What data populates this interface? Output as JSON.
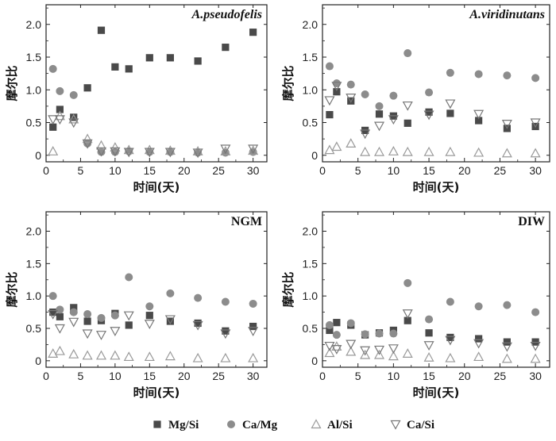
{
  "colors": {
    "mg_si": "#4a4a4a",
    "ca_mg": "#8c8c8c",
    "al_si": "#9a9a9a",
    "ca_si": "#777777",
    "axis": "#222222"
  },
  "legend": {
    "items": [
      {
        "key": "mg_si",
        "label": "Mg/Si",
        "marker": "square-filled"
      },
      {
        "key": "ca_mg",
        "label": "Ca/Mg",
        "marker": "circle-filled"
      },
      {
        "key": "al_si",
        "label": "Al/Si",
        "marker": "triangle-up-open"
      },
      {
        "key": "ca_si",
        "label": "Ca/Si",
        "marker": "triangle-down-open"
      }
    ]
  },
  "chart_data": [
    {
      "type": "scatter",
      "title": "A.pseudofelis",
      "title_italic": true,
      "xlabel": "时间(天)",
      "ylabel": "摩尔比",
      "xlim": [
        0,
        32
      ],
      "ylim": [
        -0.1,
        2.3
      ],
      "xticks": [
        0,
        5,
        10,
        15,
        20,
        25,
        30
      ],
      "yticks": [
        0,
        0.5,
        1.0,
        1.5,
        2.0
      ],
      "ytick_labels": [
        "0",
        "0.5",
        "1.0",
        "1.5",
        "2.0"
      ],
      "series": [
        {
          "name": "Mg/Si",
          "x": [
            1,
            2,
            4,
            6,
            8,
            10,
            12,
            15,
            18,
            22,
            26,
            30
          ],
          "y": [
            0.43,
            0.7,
            0.58,
            1.03,
            1.91,
            1.35,
            1.32,
            1.49,
            1.49,
            1.44,
            1.65,
            1.88
          ]
        },
        {
          "name": "Ca/Mg",
          "x": [
            1,
            2,
            4,
            6,
            8,
            10,
            12,
            15,
            18,
            22,
            26,
            30
          ],
          "y": [
            1.32,
            0.98,
            0.92,
            0.18,
            0.05,
            0.05,
            0.06,
            0.05,
            0.05,
            0.04,
            0.04,
            0.05
          ]
        },
        {
          "name": "Al/Si",
          "x": [
            1,
            2,
            4,
            6,
            8,
            10,
            12,
            15,
            18,
            22,
            26,
            30
          ],
          "y": [
            0.06,
            0.6,
            0.55,
            0.25,
            0.15,
            0.12,
            0.08,
            0.08,
            0.07,
            0.06,
            0.06,
            0.07
          ]
        },
        {
          "name": "Ca/Si",
          "x": [
            1,
            2,
            4,
            6,
            8,
            10,
            12,
            15,
            18,
            22,
            26,
            30
          ],
          "y": [
            0.55,
            0.55,
            0.5,
            0.18,
            0.06,
            0.06,
            0.05,
            0.05,
            0.05,
            0.04,
            0.1,
            0.1
          ]
        }
      ]
    },
    {
      "type": "scatter",
      "title": "A.viridinutans",
      "title_italic": true,
      "xlabel": "时间(天)",
      "ylabel": "摩尔比",
      "xlim": [
        0,
        32
      ],
      "ylim": [
        -0.1,
        2.3
      ],
      "xticks": [
        0,
        5,
        10,
        15,
        20,
        25,
        30
      ],
      "yticks": [
        0,
        0.5,
        1.0,
        1.5,
        2.0
      ],
      "ytick_labels": [
        "0",
        "0.5",
        "1.0",
        "1.5",
        "2.0"
      ],
      "series": [
        {
          "name": "Mg/Si",
          "x": [
            1,
            2,
            4,
            6,
            8,
            10,
            12,
            15,
            18,
            22,
            26,
            30
          ],
          "y": [
            0.62,
            0.97,
            0.83,
            0.38,
            0.63,
            0.6,
            0.49,
            0.66,
            0.64,
            0.53,
            0.41,
            0.44
          ]
        },
        {
          "name": "Ca/Mg",
          "x": [
            1,
            2,
            4,
            6,
            8,
            10,
            12,
            15,
            18,
            22,
            26,
            30
          ],
          "y": [
            1.36,
            1.1,
            1.08,
            0.93,
            0.75,
            0.91,
            1.56,
            0.96,
            1.26,
            1.24,
            1.22,
            1.18
          ]
        },
        {
          "name": "Al/Si",
          "x": [
            1,
            2,
            4,
            6,
            8,
            10,
            12,
            15,
            18,
            22,
            26,
            30
          ],
          "y": [
            0.08,
            0.13,
            0.18,
            0.05,
            0.05,
            0.06,
            0.05,
            0.05,
            0.05,
            0.04,
            0.03,
            0.03
          ]
        },
        {
          "name": "Ca/Si",
          "x": [
            1,
            2,
            4,
            6,
            8,
            10,
            12,
            15,
            18,
            22,
            26,
            30
          ],
          "y": [
            0.84,
            1.06,
            0.88,
            0.33,
            0.45,
            0.55,
            0.76,
            0.62,
            0.79,
            0.63,
            0.48,
            0.5
          ]
        }
      ]
    },
    {
      "type": "scatter",
      "title": "NGM",
      "title_italic": false,
      "xlabel": "时间(天)",
      "ylabel": "摩尔比",
      "xlim": [
        0,
        32
      ],
      "ylim": [
        -0.1,
        2.3
      ],
      "xticks": [
        0,
        5,
        10,
        15,
        20,
        25,
        30
      ],
      "yticks": [
        0,
        0.5,
        1.0,
        1.5,
        2.0
      ],
      "ytick_labels": [
        "0",
        "0.5",
        "1.0",
        "1.5",
        "2.0"
      ],
      "series": [
        {
          "name": "Mg/Si",
          "x": [
            1,
            2,
            4,
            6,
            8,
            10,
            12,
            15,
            18,
            22,
            26,
            30
          ],
          "y": [
            0.75,
            0.68,
            0.82,
            0.61,
            0.62,
            0.73,
            0.55,
            0.7,
            0.61,
            0.58,
            0.46,
            0.53
          ]
        },
        {
          "name": "Ca/Mg",
          "x": [
            1,
            2,
            4,
            6,
            8,
            10,
            12,
            15,
            18,
            22,
            26,
            30
          ],
          "y": [
            1.0,
            0.79,
            0.75,
            0.72,
            0.66,
            0.7,
            1.29,
            0.84,
            1.04,
            0.97,
            0.91,
            0.88
          ]
        },
        {
          "name": "Al/Si",
          "x": [
            1,
            2,
            4,
            6,
            8,
            10,
            12,
            15,
            18,
            22,
            26,
            30
          ],
          "y": [
            0.11,
            0.15,
            0.1,
            0.08,
            0.08,
            0.08,
            0.06,
            0.06,
            0.07,
            0.04,
            0.04,
            0.04
          ]
        },
        {
          "name": "Ca/Si",
          "x": [
            1,
            2,
            4,
            6,
            8,
            10,
            12,
            15,
            18,
            22,
            26,
            30
          ],
          "y": [
            0.72,
            0.5,
            0.6,
            0.42,
            0.4,
            0.46,
            0.7,
            0.57,
            0.64,
            0.55,
            0.42,
            0.46
          ]
        }
      ]
    },
    {
      "type": "scatter",
      "title": "DIW",
      "title_italic": false,
      "xlabel": "时间(天)",
      "ylabel": "摩尔比",
      "xlim": [
        0,
        32
      ],
      "ylim": [
        -0.1,
        2.3
      ],
      "xticks": [
        0,
        5,
        10,
        15,
        20,
        25,
        30
      ],
      "yticks": [
        0,
        0.5,
        1.0,
        1.5,
        2.0
      ],
      "ytick_labels": [
        "0",
        "0.5",
        "1.0",
        "1.5",
        "2.0"
      ],
      "series": [
        {
          "name": "Mg/Si",
          "x": [
            1,
            2,
            4,
            6,
            8,
            10,
            12,
            15,
            18,
            22,
            26,
            30
          ],
          "y": [
            0.47,
            0.59,
            0.55,
            0.4,
            0.43,
            0.47,
            0.62,
            0.43,
            0.36,
            0.34,
            0.29,
            0.29
          ]
        },
        {
          "name": "Ca/Mg",
          "x": [
            1,
            2,
            4,
            6,
            8,
            10,
            12,
            15,
            18,
            22,
            26,
            30
          ],
          "y": [
            0.55,
            0.4,
            0.58,
            0.41,
            0.42,
            0.42,
            1.2,
            0.64,
            0.91,
            0.84,
            0.86,
            0.75
          ]
        },
        {
          "name": "Al/Si",
          "x": [
            1,
            2,
            4,
            6,
            8,
            10,
            12,
            15,
            18,
            22,
            26,
            30
          ],
          "y": [
            0.12,
            0.22,
            0.14,
            0.09,
            0.09,
            0.07,
            0.11,
            0.05,
            0.04,
            0.06,
            0.03,
            0.03
          ]
        },
        {
          "name": "Ca/Si",
          "x": [
            1,
            2,
            4,
            6,
            8,
            10,
            12,
            15,
            18,
            22,
            26,
            30
          ],
          "y": [
            0.23,
            0.18,
            0.26,
            0.16,
            0.17,
            0.19,
            0.73,
            0.24,
            0.32,
            0.27,
            0.22,
            0.23
          ]
        }
      ]
    }
  ]
}
